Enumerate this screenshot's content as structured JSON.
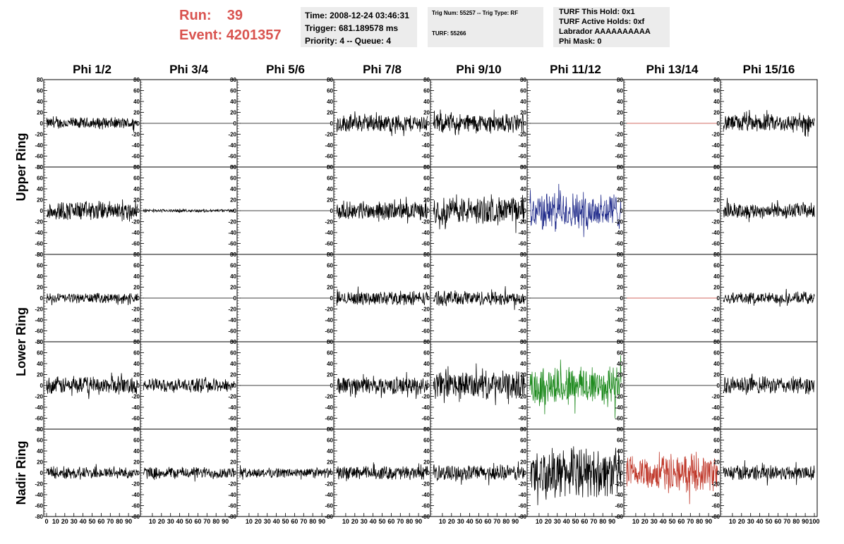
{
  "header": {
    "run_label": "Run:",
    "run_value": "39",
    "event_label": "Event:",
    "event_value": "4201357"
  },
  "box1": {
    "time": "Time: 2008-12-24 03:46:31",
    "trigger": "Trigger: 681.189578 ms",
    "priority": "Priority: 4 -- Queue: 4"
  },
  "box2": {
    "trig": "Trig Num: 55257 -- Trig Type: RF",
    "turf": "TURF: 55266"
  },
  "box3": {
    "hold": "TURF This Hold: 0x1",
    "active": "TURF Active Holds: 0xf",
    "labrador": "Labrador AAAAAAAAAA",
    "phi_mask": "Phi Mask: 0"
  },
  "chart_data": {
    "type": "line",
    "columns": [
      "Phi 1/2",
      "Phi 3/4",
      "Phi 5/6",
      "Phi 7/8",
      "Phi 9/10",
      "Phi 11/12",
      "Phi 13/14",
      "Phi 15/16"
    ],
    "ring_labels": [
      {
        "label": "Upper Ring",
        "rows": [
          0,
          1
        ]
      },
      {
        "label": "Lower Ring",
        "rows": [
          2,
          3
        ]
      },
      {
        "label": "Nadir Ring",
        "rows": [
          4
        ]
      }
    ],
    "ylim": [
      -80,
      80
    ],
    "xlim": [
      0,
      100
    ],
    "y_ticks": [
      "80",
      "60",
      "40",
      "20",
      "0",
      "-20",
      "-40",
      "-60",
      "-80"
    ],
    "x_ticks_first": [
      "0",
      "10",
      "20",
      "30",
      "40",
      "50",
      "60",
      "70",
      "80",
      "90"
    ],
    "x_ticks_other": [
      "10",
      "20",
      "30",
      "40",
      "50",
      "60",
      "70",
      "80",
      "90"
    ],
    "x_ticks_last": [
      "10",
      "20",
      "30",
      "40",
      "50",
      "60",
      "70",
      "80",
      "90",
      "100"
    ],
    "colors": {
      "default": "#000000",
      "blue": "#1f2a8a",
      "green": "#1e8a1e",
      "red": "#c0392b"
    },
    "panels": [
      [
        {
          "amp": 12,
          "color": "default"
        },
        {
          "amp": 0,
          "color": "default"
        },
        {
          "amp": 0,
          "color": "default"
        },
        {
          "amp": 18,
          "color": "default"
        },
        {
          "amp": 20,
          "color": "default"
        },
        {
          "amp": 0,
          "color": "default"
        },
        {
          "amp": 0,
          "color": "red"
        },
        {
          "amp": 18,
          "color": "default"
        }
      ],
      [
        {
          "amp": 20,
          "color": "default"
        },
        {
          "amp": 3,
          "color": "default"
        },
        {
          "amp": 0,
          "color": "default"
        },
        {
          "amp": 18,
          "color": "default"
        },
        {
          "amp": 28,
          "color": "default"
        },
        {
          "amp": 38,
          "color": "blue"
        },
        {
          "amp": 0,
          "color": "default"
        },
        {
          "amp": 16,
          "color": "default"
        }
      ],
      [
        {
          "amp": 10,
          "color": "default"
        },
        {
          "amp": 0,
          "color": "default"
        },
        {
          "amp": 0,
          "color": "default"
        },
        {
          "amp": 14,
          "color": "default"
        },
        {
          "amp": 15,
          "color": "default"
        },
        {
          "amp": 0,
          "color": "default"
        },
        {
          "amp": 0,
          "color": "red"
        },
        {
          "amp": 12,
          "color": "default"
        }
      ],
      [
        {
          "amp": 18,
          "color": "default"
        },
        {
          "amp": 14,
          "color": "default"
        },
        {
          "amp": 0,
          "color": "default"
        },
        {
          "amp": 18,
          "color": "default"
        },
        {
          "amp": 28,
          "color": "default"
        },
        {
          "amp": 42,
          "color": "green"
        },
        {
          "amp": 0,
          "color": "default"
        },
        {
          "amp": 18,
          "color": "default"
        }
      ],
      [
        {
          "amp": 12,
          "color": "default"
        },
        {
          "amp": 12,
          "color": "default"
        },
        {
          "amp": 10,
          "color": "default"
        },
        {
          "amp": 14,
          "color": "default"
        },
        {
          "amp": 16,
          "color": "default"
        },
        {
          "amp": 50,
          "color": "default"
        },
        {
          "amp": 36,
          "color": "red"
        },
        {
          "amp": 16,
          "color": "default"
        }
      ]
    ]
  }
}
